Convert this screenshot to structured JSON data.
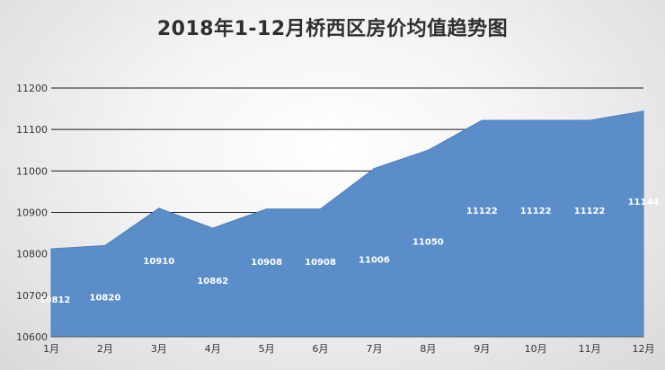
{
  "chart_data": {
    "type": "area",
    "title": "2018年1-12月桥西区房价均值趋势图",
    "categories": [
      "1月",
      "2月",
      "3月",
      "4月",
      "5月",
      "6月",
      "7月",
      "8月",
      "9月",
      "10月",
      "11月",
      "12月"
    ],
    "series": [
      {
        "values": [
          10812,
          10820,
          10910,
          10862,
          10908,
          10908,
          11006,
          11050,
          11122,
          11122,
          11122,
          11144
        ]
      }
    ],
    "data_labels": [
      "10812",
      "10820",
      "10910",
      "10862",
      "10908",
      "10908",
      "11006",
      "11050",
      "11122",
      "11122",
      "11122",
      "11144"
    ],
    "yticks": [
      "10600",
      "10700",
      "10800",
      "10900",
      "11000",
      "11100",
      "11200"
    ],
    "ylim": [
      10600,
      11200
    ],
    "grid": true,
    "colors": {
      "area": "#5b8dc9",
      "gridline": "#1a1a1a"
    }
  }
}
